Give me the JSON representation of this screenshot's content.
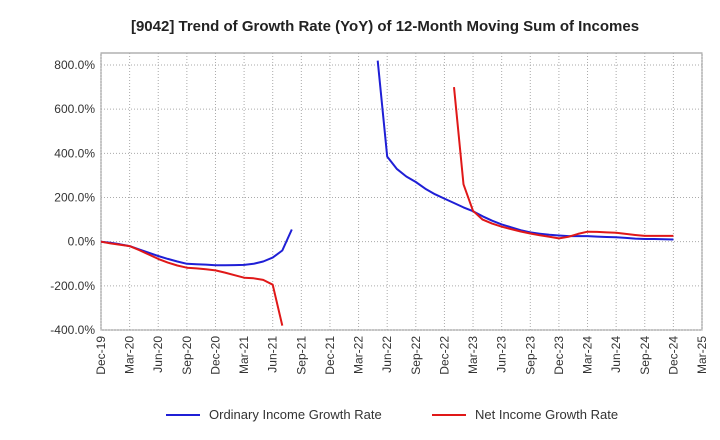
{
  "chart_data": {
    "type": "line",
    "title": "[9042]  Trend of Growth Rate (YoY) of 12-Month Moving Sum of Incomes",
    "xlabel": "",
    "ylabel": "",
    "ylim": [
      -400,
      850
    ],
    "grid": true,
    "legend_position": "bottom",
    "x_ticks": [
      "Dec-19",
      "Mar-20",
      "Jun-20",
      "Sep-20",
      "Dec-20",
      "Mar-21",
      "Jun-21",
      "Sep-21",
      "Dec-21",
      "Mar-22",
      "Jun-22",
      "Sep-22",
      "Dec-22",
      "Mar-23",
      "Jun-23",
      "Sep-23",
      "Dec-23",
      "Mar-24",
      "Jun-24",
      "Sep-24",
      "Dec-24",
      "Mar-25"
    ],
    "y_ticks": [
      {
        "value": 800,
        "label": "800.0%"
      },
      {
        "value": 600,
        "label": "600.0%"
      },
      {
        "value": 400,
        "label": "400.0%"
      },
      {
        "value": 200,
        "label": "200.0%"
      },
      {
        "value": 0,
        "label": "0.0%"
      },
      {
        "value": -200,
        "label": "-200.0%"
      },
      {
        "value": -400,
        "label": "-400.0%"
      }
    ],
    "series": [
      {
        "name": "Ordinary Income Growth Rate",
        "color": "#1f1fd6",
        "segments": [
          [
            {
              "x": "Dec-19",
              "y": 0
            },
            {
              "x": "Jan-20",
              "y": -5
            },
            {
              "x": "Feb-20",
              "y": -12
            },
            {
              "x": "Mar-20",
              "y": -20
            },
            {
              "x": "Apr-20",
              "y": -35
            },
            {
              "x": "May-20",
              "y": -50
            },
            {
              "x": "Jun-20",
              "y": -65
            },
            {
              "x": "Jul-20",
              "y": -78
            },
            {
              "x": "Aug-20",
              "y": -90
            },
            {
              "x": "Sep-20",
              "y": -100
            },
            {
              "x": "Oct-20",
              "y": -102
            },
            {
              "x": "Nov-20",
              "y": -104
            },
            {
              "x": "Dec-20",
              "y": -107
            },
            {
              "x": "Jan-21",
              "y": -107
            },
            {
              "x": "Feb-21",
              "y": -106
            },
            {
              "x": "Mar-21",
              "y": -105
            },
            {
              "x": "Apr-21",
              "y": -100
            },
            {
              "x": "May-21",
              "y": -90
            },
            {
              "x": "Jun-21",
              "y": -72
            },
            {
              "x": "Jul-21",
              "y": -40
            },
            {
              "x": "Aug-21",
              "y": 55
            }
          ],
          [
            {
              "x": "May-22",
              "y": 820
            },
            {
              "x": "Jun-22",
              "y": 385
            },
            {
              "x": "Jul-22",
              "y": 330
            },
            {
              "x": "Aug-22",
              "y": 295
            },
            {
              "x": "Sep-22",
              "y": 270
            },
            {
              "x": "Oct-22",
              "y": 240
            },
            {
              "x": "Nov-22",
              "y": 215
            },
            {
              "x": "Dec-22",
              "y": 195
            },
            {
              "x": "Jan-23",
              "y": 175
            },
            {
              "x": "Feb-23",
              "y": 155
            },
            {
              "x": "Mar-23",
              "y": 138
            },
            {
              "x": "Apr-23",
              "y": 115
            },
            {
              "x": "May-23",
              "y": 95
            },
            {
              "x": "Jun-23",
              "y": 78
            },
            {
              "x": "Jul-23",
              "y": 65
            },
            {
              "x": "Aug-23",
              "y": 52
            },
            {
              "x": "Sep-23",
              "y": 42
            },
            {
              "x": "Oct-23",
              "y": 36
            },
            {
              "x": "Nov-23",
              "y": 31
            },
            {
              "x": "Dec-23",
              "y": 28
            },
            {
              "x": "Jan-24",
              "y": 25
            },
            {
              "x": "Feb-24",
              "y": 25
            },
            {
              "x": "Mar-24",
              "y": 25
            },
            {
              "x": "Apr-24",
              "y": 23
            },
            {
              "x": "May-24",
              "y": 21
            },
            {
              "x": "Jun-24",
              "y": 20
            },
            {
              "x": "Jul-24",
              "y": 17
            },
            {
              "x": "Aug-24",
              "y": 14
            },
            {
              "x": "Sep-24",
              "y": 12
            },
            {
              "x": "Oct-24",
              "y": 12
            },
            {
              "x": "Nov-24",
              "y": 11
            },
            {
              "x": "Dec-24",
              "y": 10
            }
          ]
        ]
      },
      {
        "name": "Net Income Growth Rate",
        "color": "#e01818",
        "segments": [
          [
            {
              "x": "Dec-19",
              "y": 0
            },
            {
              "x": "Jan-20",
              "y": -8
            },
            {
              "x": "Feb-20",
              "y": -14
            },
            {
              "x": "Mar-20",
              "y": -20
            },
            {
              "x": "Apr-20",
              "y": -38
            },
            {
              "x": "May-20",
              "y": -58
            },
            {
              "x": "Jun-20",
              "y": -78
            },
            {
              "x": "Jul-20",
              "y": -95
            },
            {
              "x": "Aug-20",
              "y": -108
            },
            {
              "x": "Sep-20",
              "y": -118
            },
            {
              "x": "Oct-20",
              "y": -121
            },
            {
              "x": "Nov-20",
              "y": -125
            },
            {
              "x": "Dec-20",
              "y": -130
            },
            {
              "x": "Jan-21",
              "y": -140
            },
            {
              "x": "Feb-21",
              "y": -152
            },
            {
              "x": "Mar-21",
              "y": -163
            },
            {
              "x": "Apr-21",
              "y": -166
            },
            {
              "x": "May-21",
              "y": -173
            },
            {
              "x": "Jun-21",
              "y": -195
            },
            {
              "x": "Jul-21",
              "y": -380
            }
          ],
          [
            {
              "x": "Jan-23",
              "y": 700
            },
            {
              "x": "Feb-23",
              "y": 260
            },
            {
              "x": "Mar-23",
              "y": 140
            },
            {
              "x": "Apr-23",
              "y": 100
            },
            {
              "x": "May-23",
              "y": 82
            },
            {
              "x": "Jun-23",
              "y": 68
            },
            {
              "x": "Jul-23",
              "y": 57
            },
            {
              "x": "Aug-23",
              "y": 46
            },
            {
              "x": "Sep-23",
              "y": 37
            },
            {
              "x": "Oct-23",
              "y": 29
            },
            {
              "x": "Nov-23",
              "y": 22
            },
            {
              "x": "Dec-23",
              "y": 15
            },
            {
              "x": "Jan-24",
              "y": 22
            },
            {
              "x": "Feb-24",
              "y": 35
            },
            {
              "x": "Mar-24",
              "y": 45
            },
            {
              "x": "Apr-24",
              "y": 44
            },
            {
              "x": "May-24",
              "y": 42
            },
            {
              "x": "Jun-24",
              "y": 40
            },
            {
              "x": "Jul-24",
              "y": 35
            },
            {
              "x": "Aug-24",
              "y": 30
            },
            {
              "x": "Sep-24",
              "y": 26
            },
            {
              "x": "Oct-24",
              "y": 26
            },
            {
              "x": "Nov-24",
              "y": 26
            },
            {
              "x": "Dec-24",
              "y": 26
            }
          ]
        ]
      }
    ]
  }
}
